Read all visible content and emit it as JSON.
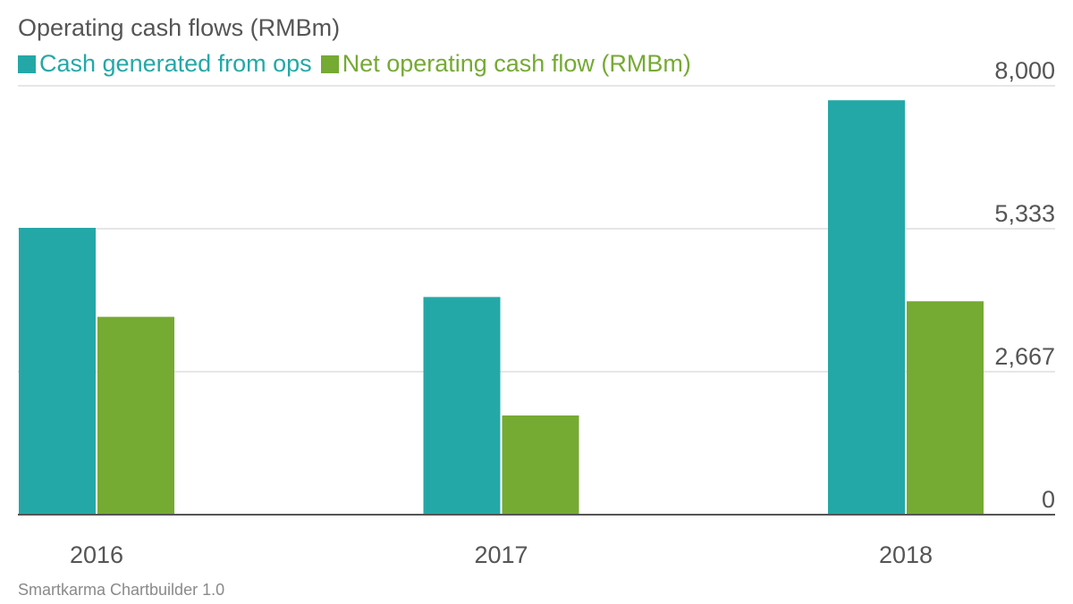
{
  "chart_data": {
    "type": "bar",
    "title": "Operating cash flows (RMBm)",
    "categories": [
      "2016",
      "2017",
      "2018"
    ],
    "series": [
      {
        "name": "Cash generated from ops",
        "color": "#24a8a7",
        "values": [
          5350,
          4060,
          7730
        ]
      },
      {
        "name": "Net operating cash flow (RMBm)",
        "color": "#75aa33",
        "values": [
          3690,
          1850,
          3980
        ]
      }
    ],
    "ylim": [
      0,
      8000
    ],
    "yticks": [
      0,
      2667,
      5333,
      8000
    ],
    "ytick_labels": [
      "0",
      "2,667",
      "5,333",
      "8,000"
    ],
    "y_axis_position": "right",
    "grid": true,
    "legend_position": "top-left",
    "xlabel": "",
    "ylabel": ""
  },
  "footer": "Smartkarma Chartbuilder 1.0"
}
